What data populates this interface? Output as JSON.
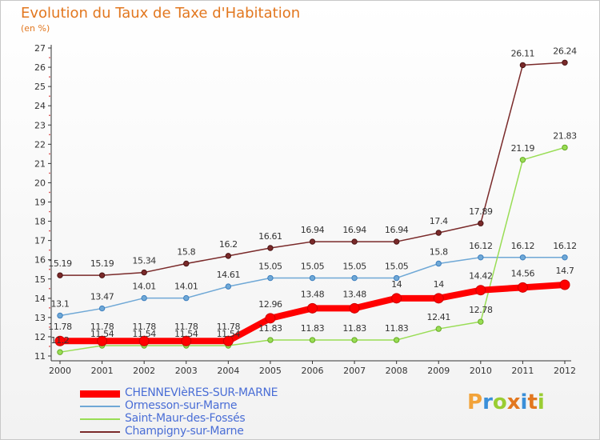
{
  "header": {
    "title": "Evolution du Taux de Taxe d'Habitation",
    "unit": "(en %)"
  },
  "logo": {
    "text": "Proxiti",
    "letters": [
      "P",
      "r",
      "o",
      "x",
      "i",
      "t",
      "i"
    ],
    "colors": [
      "#f2a33a",
      "#3a8fd9",
      "#9acd32",
      "#e2771f",
      "#3a8fd9",
      "#e2771f",
      "#9acd32"
    ]
  },
  "chart_data": {
    "type": "line",
    "title": "Evolution du Taux de Taxe d'Habitation",
    "ylabel": "(en %)",
    "xlabel": "",
    "x": [
      "2000",
      "2001",
      "2002",
      "2003",
      "2004",
      "2005",
      "2006",
      "2007",
      "2008",
      "2009",
      "2010",
      "2011",
      "2012"
    ],
    "ylim": [
      11,
      27
    ],
    "yticks": [
      "11",
      "12",
      "13",
      "14",
      "15",
      "16",
      "17",
      "18",
      "19",
      "20",
      "21",
      "22",
      "23",
      "24",
      "25",
      "26",
      "27"
    ],
    "grid": false,
    "legend": "bottom-left",
    "series": [
      {
        "name": "CHENNEVIèRES-SUR-MARNE",
        "color": "#ff0000",
        "values": [
          11.78,
          11.78,
          11.78,
          11.78,
          11.78,
          12.96,
          13.48,
          13.48,
          14,
          14,
          14.42,
          14.56,
          14.7
        ],
        "labels": [
          "11.78",
          "11.78",
          "11.78",
          "11.78",
          "11.78",
          "12.96",
          "13.48",
          "13.48",
          "14",
          "14",
          "14.42",
          "14.56",
          "14.7"
        ]
      },
      {
        "name": "Ormesson-sur-Marne",
        "color": "#6fa8d6",
        "values": [
          13.1,
          13.47,
          14.01,
          14.01,
          14.61,
          15.05,
          15.05,
          15.05,
          15.05,
          15.8,
          16.12,
          16.12,
          16.12
        ],
        "labels": [
          "13.1",
          "13.47",
          "14.01",
          "14.01",
          "14.61",
          "15.05",
          "15.05",
          "15.05",
          "15.05",
          "15.8",
          "16.12",
          "16.12",
          "16.12"
        ]
      },
      {
        "name": "Saint-Maur-des-Fossés",
        "color": "#99dd55",
        "values": [
          11.2,
          11.54,
          11.54,
          11.54,
          11.54,
          11.83,
          11.83,
          11.83,
          11.83,
          12.41,
          12.78,
          21.19,
          21.83
        ],
        "labels": [
          "11.2",
          "11.54",
          "11.54",
          "11.54",
          "11.54",
          "11.83",
          "11.83",
          "11.83",
          "11.83",
          "12.41",
          "12.78",
          "21.19",
          "21.83"
        ]
      },
      {
        "name": "Champigny-sur-Marne",
        "color": "#7a2a2a",
        "values": [
          15.19,
          15.19,
          15.34,
          15.8,
          16.2,
          16.61,
          16.94,
          16.94,
          16.94,
          17.4,
          17.89,
          26.11,
          26.24
        ],
        "labels": [
          "15.19",
          "15.19",
          "15.34",
          "15.8",
          "16.2",
          "16.61",
          "16.94",
          "16.94",
          "16.94",
          "17.4",
          "17.89",
          "26.11",
          "26.24"
        ]
      }
    ]
  }
}
